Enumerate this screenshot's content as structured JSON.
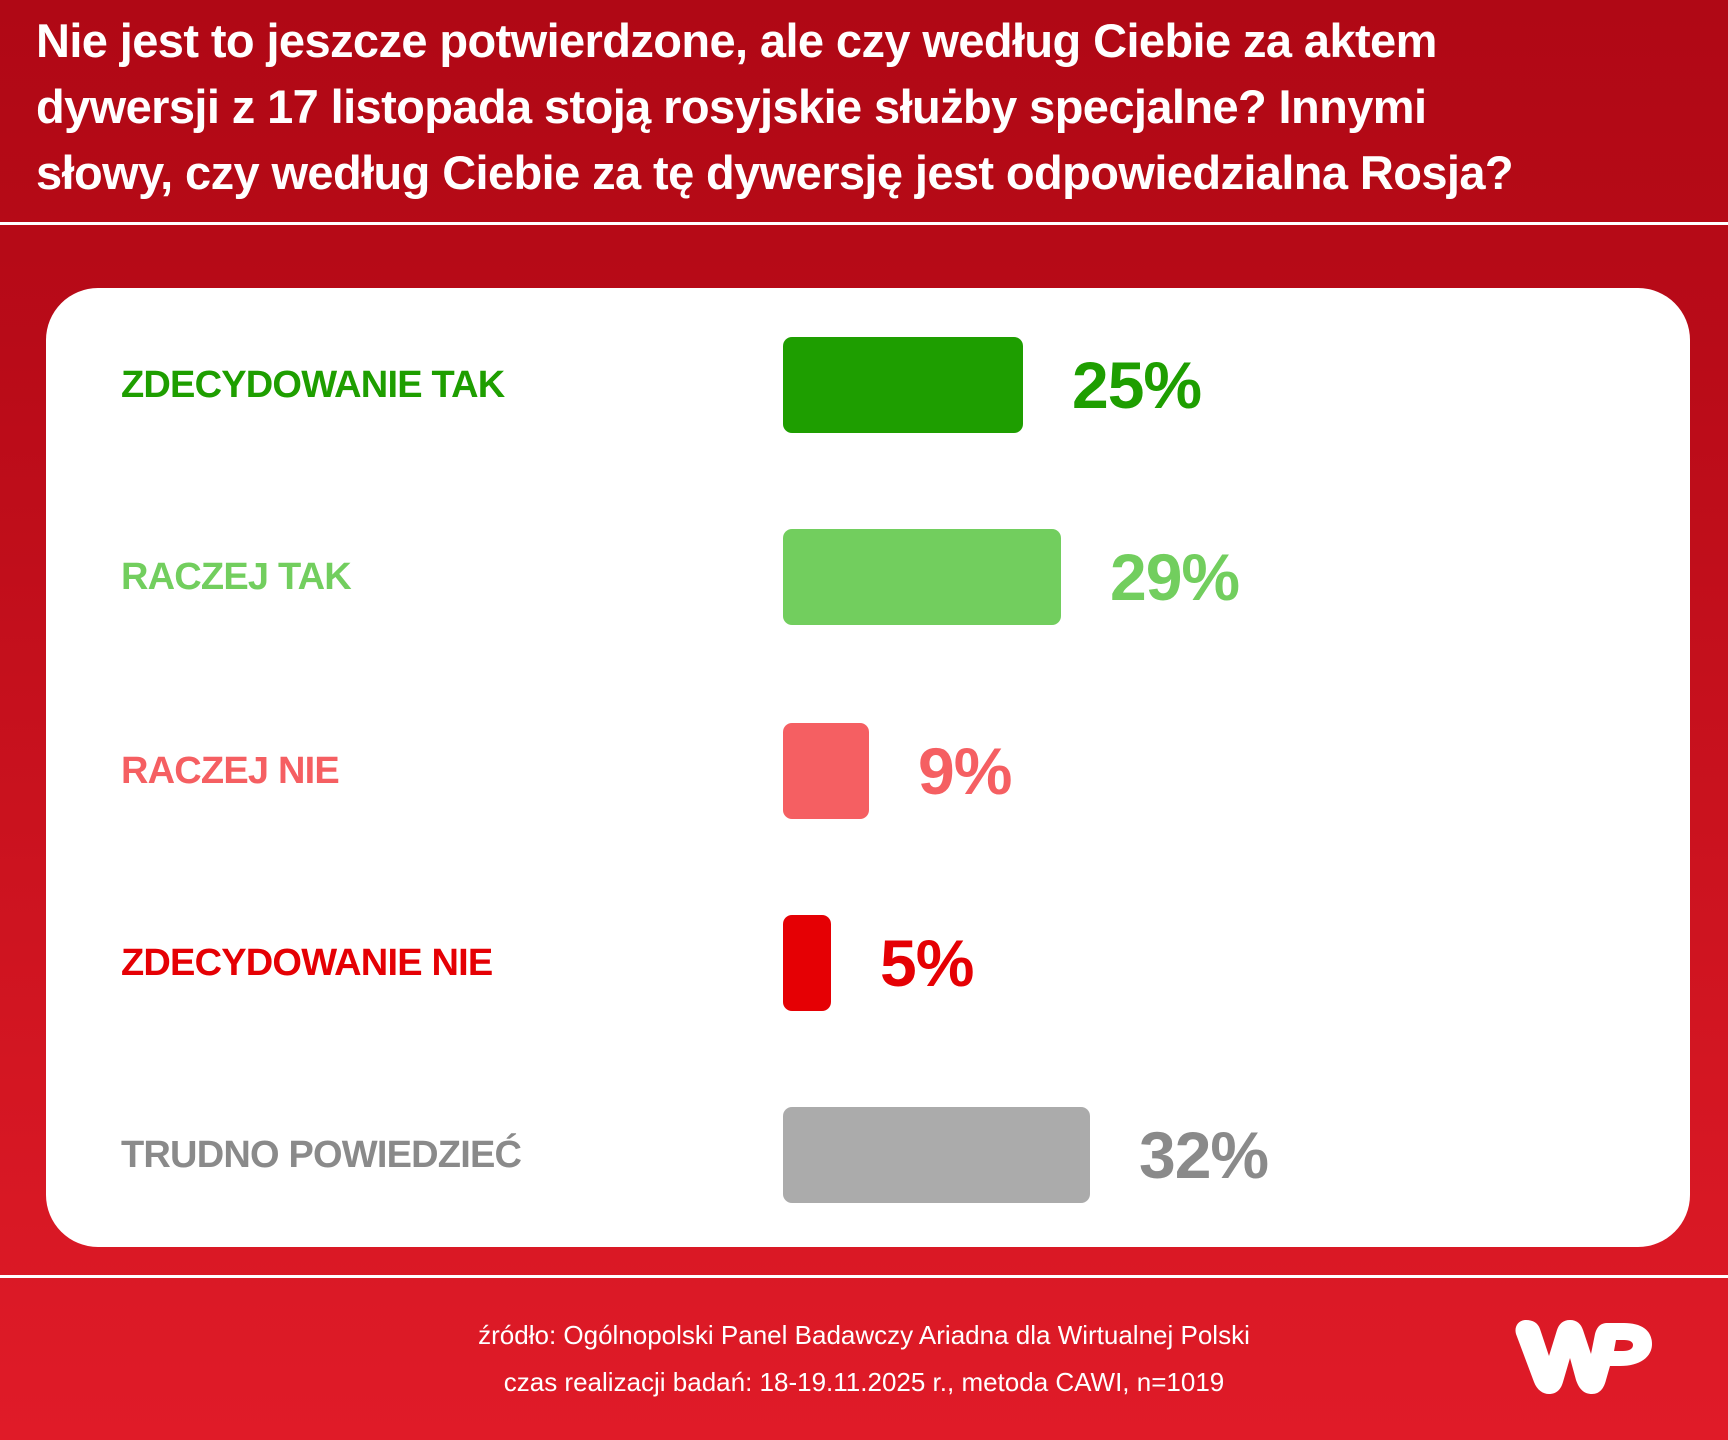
{
  "title": {
    "lines": [
      "Nie jest to jeszcze potwierdzone, ale czy według Ciebie za aktem",
      "dywersji z 17 listopada stoją rosyjskie służby specjalne? Innymi",
      "słowy, czy według Ciebie za tę dywersję jest odpowiedzialna Rosja?"
    ]
  },
  "rows": [
    {
      "label": "ZDECYDOWANIE TAK",
      "value": "25%",
      "pct": 25,
      "color": "#1E9E00",
      "bar_color": "#1E9E00"
    },
    {
      "label": "RACZEJ TAK",
      "value": "29%",
      "pct": 29,
      "color": "#72CE5E",
      "bar_color": "#72CE5E"
    },
    {
      "label": "RACZEJ NIE",
      "value": "9%",
      "pct": 9,
      "color": "#F55F62",
      "bar_color": "#F55F62"
    },
    {
      "label": "ZDECYDOWANIE NIE",
      "value": "5%",
      "pct": 5,
      "color": "#E50004",
      "bar_color": "#E50004"
    },
    {
      "label": "TRUDNO POWIEDZIEĆ",
      "value": "32%",
      "pct": 32,
      "color": "#8A8A8A",
      "bar_color": "#ABABAB"
    }
  ],
  "footer": {
    "source": "źródło: Ogólnopolski Panel Badawczy Ariadna dla Wirtualnej Polski",
    "details": "czas realizacji badań: 18-19.11.2025 r., metoda CAWI, n=1019",
    "logo": "wp-logo"
  },
  "colors": {
    "background_top": "#B00815",
    "background_bottom": "#E01B28",
    "card": "#FFFFFF"
  },
  "chart_data": {
    "type": "bar",
    "orientation": "horizontal",
    "title": "Nie jest to jeszcze potwierdzone, ale czy według Ciebie za aktem dywersji z 17 listopada stoją rosyjskie służby specjalne? Innymi słowy, czy według Ciebie za tę dywersję jest odpowiedzialna Rosja?",
    "categories": [
      "ZDECYDOWANIE TAK",
      "RACZEJ TAK",
      "RACZEJ NIE",
      "ZDECYDOWANIE NIE",
      "TRUDNO POWIEDZIEĆ"
    ],
    "values": [
      25,
      29,
      9,
      5,
      32
    ],
    "unit": "%",
    "data_labels": [
      "25%",
      "29%",
      "9%",
      "5%",
      "32%"
    ],
    "colors": [
      "#1E9E00",
      "#72CE5E",
      "#F55F62",
      "#E50004",
      "#ABABAB"
    ],
    "xlabel": "",
    "ylabel": "",
    "grid": false,
    "legend": "none",
    "source": "źródło: Ogólnopolski Panel Badawczy Ariadna dla Wirtualnej Polski",
    "note": "czas realizacji badań: 18-19.11.2025 r., metoda CAWI, n=1019"
  }
}
